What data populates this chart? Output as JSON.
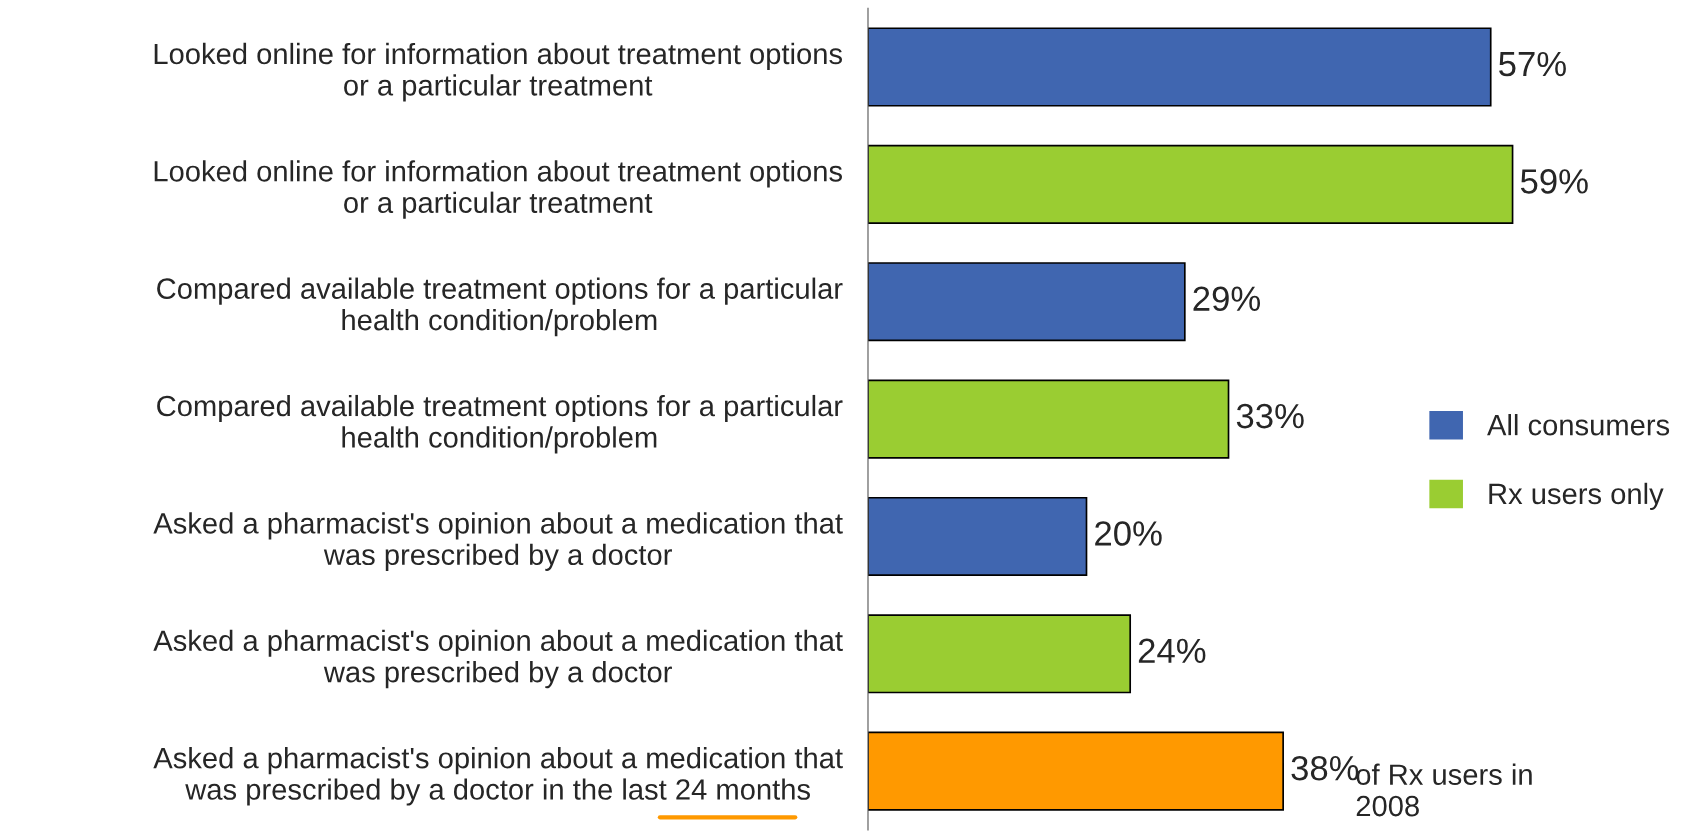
{
  "chart_data": {
    "type": "bar",
    "orientation": "horizontal",
    "categories": [
      "Looked online for information about treatment options\nor a particular treatment",
      "Looked online for information about treatment options\nor a particular treatment",
      "Compared available treatment options for a particular\nhealth condition/problem",
      "Compared available treatment options for a particular\nhealth condition/problem",
      "Asked a pharmacist's opinion about a medication that\nwas prescribed by a doctor",
      "Asked a pharmacist's opinion about a medication that\nwas prescribed by a doctor",
      "Asked a pharmacist's opinion about a medication that\nwas prescribed by a doctor in the last 24 months"
    ],
    "series": [
      {
        "name": "All consumers",
        "color": "#4066b0",
        "values": [
          57,
          null,
          29,
          null,
          20,
          null,
          null
        ],
        "value_labels": [
          "57%",
          null,
          "29%",
          null,
          "20%",
          null,
          null
        ]
      },
      {
        "name": "Rx users only",
        "color": "#9acd32",
        "values": [
          null,
          59,
          null,
          33,
          null,
          24,
          null
        ],
        "value_labels": [
          null,
          "59%",
          null,
          "33%",
          null,
          "24%",
          null
        ]
      },
      {
        "color": "#ff9900",
        "values": [
          null,
          null,
          null,
          null,
          null,
          null,
          38
        ],
        "value_labels": [
          null,
          null,
          null,
          null,
          null,
          null,
          "38%"
        ]
      }
    ],
    "annotations": [
      "of Rx users in\n2008"
    ],
    "legend": "right",
    "grid": false,
    "tick_labels": "y"
  }
}
